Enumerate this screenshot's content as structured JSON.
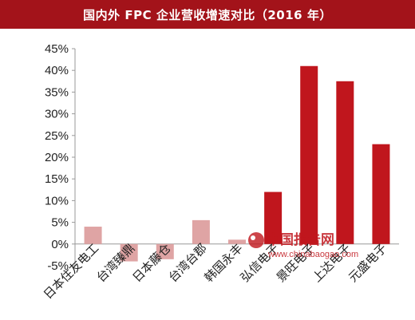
{
  "chart_data": {
    "type": "bar",
    "title": "国内外 FPC 企业营收增速对比（2016 年）",
    "categories": [
      "日本住友电工",
      "台湾臻鼎",
      "日本藤仓",
      "台湾台郡",
      "韩国永丰",
      "弘信电子",
      "景旺电子",
      "上达电子",
      "元盛电子"
    ],
    "values": [
      4,
      -4,
      -3.5,
      5.5,
      1,
      12,
      41,
      37.5,
      23
    ],
    "ylim": [
      -5,
      45
    ],
    "yticks": [
      -5,
      0,
      5,
      10,
      15,
      20,
      25,
      30,
      35,
      40,
      45
    ],
    "ytick_labels": [
      "-5%",
      "0%",
      "5%",
      "10%",
      "15%",
      "20%",
      "25%",
      "30%",
      "35%",
      "40%",
      "45%"
    ],
    "bar_groups": {
      "foreign_count": 5
    },
    "colors": {
      "foreign": "#dfa4a4",
      "domestic": "#c0161d",
      "title_bg": "#a3131a"
    },
    "grid": false,
    "legend": "none"
  },
  "watermark": {
    "cn": "中国报告网",
    "en": "www.chinabaogao.com"
  }
}
